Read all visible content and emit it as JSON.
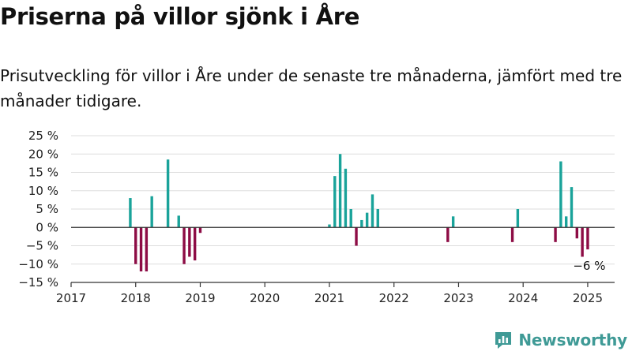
{
  "header": {
    "title": "Priserna på villor sjönk i Åre",
    "subtitle": "Prisutveckling för villor i Åre under de senaste tre månaderna, jämfört med tre månader tidigare."
  },
  "brand": {
    "name": "Newsworthy",
    "icon": "newsworthy-logo-icon",
    "color": "#3f9a96"
  },
  "chart_data": {
    "type": "bar",
    "title": "",
    "xlabel": "",
    "ylabel": "",
    "ylim": [
      -15,
      25
    ],
    "xlim": [
      "2017-01",
      "2025-06"
    ],
    "grid": true,
    "legend": "none",
    "colors": {
      "positive": "#1aa39a",
      "negative": "#8d0c45",
      "zero_line": "#333333",
      "grid": "#dddddd"
    },
    "y_ticks": [
      {
        "value": 25,
        "label": "25 %"
      },
      {
        "value": 20,
        "label": "20 %"
      },
      {
        "value": 15,
        "label": "15 %"
      },
      {
        "value": 10,
        "label": "10 %"
      },
      {
        "value": 5,
        "label": "5 %"
      },
      {
        "value": 0,
        "label": "0 %"
      },
      {
        "value": -5,
        "label": "−5 %"
      },
      {
        "value": -10,
        "label": "−10 %"
      },
      {
        "value": -15,
        "label": "−15 %"
      }
    ],
    "x_ticks": [
      "2017",
      "2018",
      "2019",
      "2020",
      "2021",
      "2022",
      "2023",
      "2024",
      "2025"
    ],
    "series": [
      {
        "x": [
          "2017-12",
          "2018-01",
          "2018-02",
          "2018-03",
          "2018-04",
          "2018-07",
          "2018-09",
          "2018-10",
          "2018-11",
          "2018-12",
          "2019-01",
          "2021-01",
          "2021-02",
          "2021-03",
          "2021-04",
          "2021-05",
          "2021-06",
          "2021-07",
          "2021-08",
          "2021-09",
          "2021-10",
          "2022-11",
          "2022-12",
          "2023-11",
          "2023-12",
          "2024-07",
          "2024-08",
          "2024-09",
          "2024-10",
          "2024-11",
          "2024-12",
          "2025-01"
        ],
        "values": [
          8,
          -10,
          -12,
          -12,
          8.5,
          18.5,
          3.2,
          -10,
          -8,
          -9,
          -1.5,
          0.8,
          14,
          20,
          16,
          5,
          -5,
          2,
          4,
          9,
          5,
          -4,
          3,
          -4,
          5,
          -4,
          18,
          3,
          11,
          -3,
          -8,
          -6
        ]
      }
    ],
    "annotations": [
      {
        "x": "2025-01",
        "y": -6,
        "text": "−6 %"
      }
    ]
  }
}
